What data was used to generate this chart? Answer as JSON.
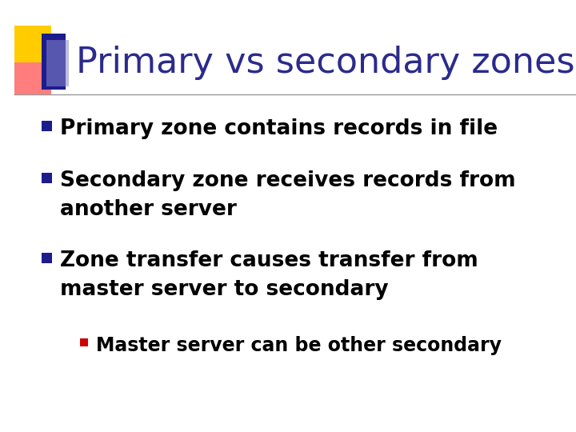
{
  "title": "Primary vs secondary zones",
  "title_color": "#2B2B8C",
  "title_fontsize": 32,
  "background_color": "#FFFFFF",
  "text_color": "#000000",
  "bullets": [
    {
      "text": "Primary zone contains records in file",
      "level": 0,
      "bullet_color": "#1C1C8C"
    },
    {
      "text": "Secondary zone receives records from\nanother server",
      "level": 0,
      "bullet_color": "#1C1C8C"
    },
    {
      "text": "Zone transfer causes transfer from\nmaster server to secondary",
      "level": 0,
      "bullet_color": "#1C1C8C"
    },
    {
      "text": "Master server can be other secondary",
      "level": 1,
      "bullet_color": "#CC0000"
    }
  ],
  "bullet_fontsize": 19,
  "sub_bullet_fontsize": 17,
  "logo_colors": {
    "yellow": "#FFCC00",
    "red_pink": "#FF6666",
    "blue_dark": "#1C1C8C",
    "blue_light": "#8888CC"
  },
  "line_color": "#999999"
}
